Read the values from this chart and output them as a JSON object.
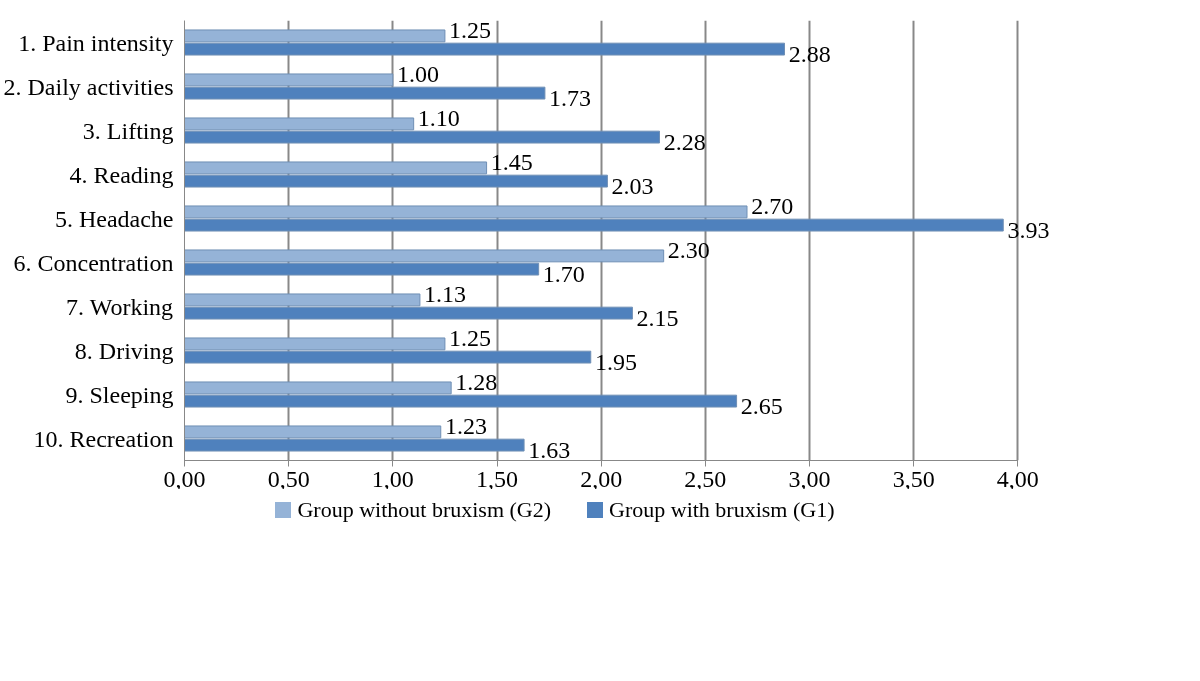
{
  "chart_data": {
    "type": "bar",
    "orientation": "horizontal",
    "categories": [
      "1. Pain intensity",
      "2. Daily activities",
      "3. Lifting",
      "4. Reading",
      "5. Headache",
      "6. Concentration",
      "7. Working",
      "8. Driving",
      "9. Sleeping",
      "10. Recreation"
    ],
    "series": [
      {
        "name": "Group without bruxism (G2)",
        "color": "#95b3d7",
        "values": [
          1.25,
          1.0,
          1.1,
          1.45,
          2.7,
          2.3,
          1.13,
          1.25,
          1.28,
          1.23
        ],
        "value_labels": [
          "1.25",
          "1.00",
          "1.10",
          "1.45",
          "2.70",
          "2.30",
          "1.13",
          "1.25",
          "1.28",
          "1.23"
        ]
      },
      {
        "name": "Group with bruxism (G1)",
        "color": "#4f81bd",
        "values": [
          2.88,
          1.73,
          2.28,
          2.03,
          3.93,
          1.7,
          2.15,
          1.95,
          2.65,
          1.63
        ],
        "value_labels": [
          "2.88",
          "1.73",
          "2.28",
          "2.03",
          "3.93",
          "1.70",
          "2.15",
          "1.95",
          "2.65",
          "1.63"
        ]
      }
    ],
    "xlim": [
      0,
      4
    ],
    "xticks": [
      {
        "value": 0,
        "label": "0,00"
      },
      {
        "value": 0.5,
        "label": "0,50"
      },
      {
        "value": 1,
        "label": "1,00"
      },
      {
        "value": 1.5,
        "label": "1,50"
      },
      {
        "value": 2,
        "label": "2,00"
      },
      {
        "value": 2.5,
        "label": "2,50"
      },
      {
        "value": 3,
        "label": "3,00"
      },
      {
        "value": 3.5,
        "label": "3,50"
      },
      {
        "value": 4,
        "label": "4,00"
      }
    ],
    "grid": "x",
    "legend": "bottom"
  }
}
